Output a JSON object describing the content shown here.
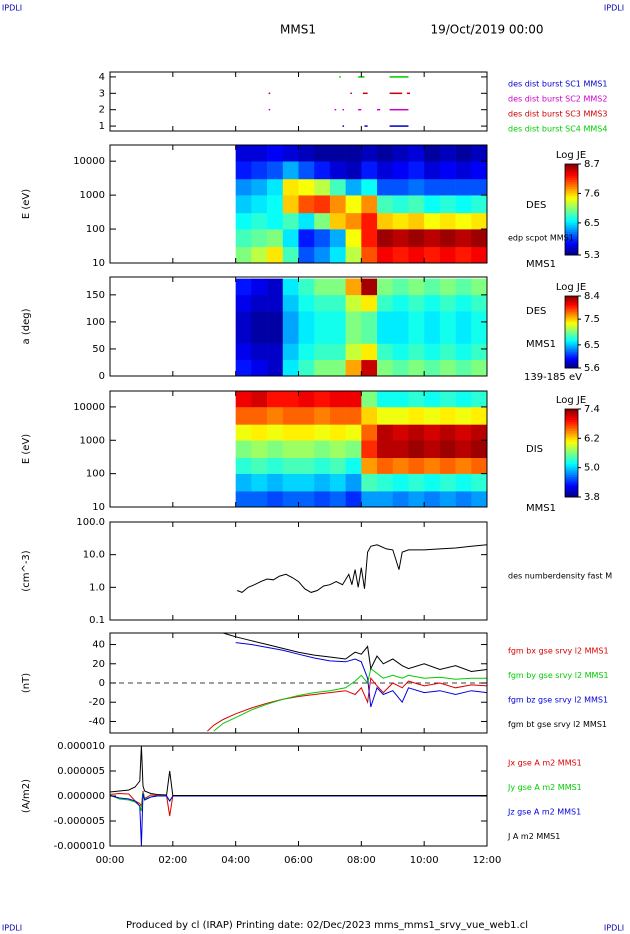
{
  "page": {
    "corner_marks": [
      "IPDLI",
      "IPDLI",
      "IPDLI",
      "IPDLI"
    ],
    "title": "MMS1",
    "date": "19/Oct/2019 00:00",
    "footer": "Produced by cl (IRAP)   Printing date: 02/Dec/2023   mms_mms1_srvy_vue_web1.cl"
  },
  "chart_data": [
    {
      "type": "timeline",
      "xlim": [
        0,
        12
      ],
      "ylim": [
        0.7,
        4.3
      ],
      "yticks": [
        1,
        2,
        3,
        4
      ],
      "series": [
        {
          "name": "des dist burst SC1 MMS1",
          "color": "#0000cc",
          "y": 1,
          "intervals": [
            [
              7.4,
              7.45
            ],
            [
              8.1,
              8.2
            ],
            [
              8.9,
              9.5
            ]
          ]
        },
        {
          "name": "des dist burst SC2 MMS2",
          "color": "#cc00cc",
          "y": 2,
          "intervals": [
            [
              5.05,
              5.1
            ],
            [
              7.15,
              7.2
            ],
            [
              7.4,
              7.45
            ],
            [
              7.9,
              8.0
            ],
            [
              8.5,
              8.6
            ],
            [
              8.9,
              9.5
            ]
          ]
        },
        {
          "name": "des dist burst SC3 MMS3",
          "color": "#cc0000",
          "y": 3,
          "intervals": [
            [
              5.05,
              5.1
            ],
            [
              7.65,
              7.7
            ],
            [
              8.05,
              8.2
            ],
            [
              8.9,
              9.3
            ],
            [
              9.45,
              9.55
            ]
          ]
        },
        {
          "name": "des dist burst SC4 MMS4",
          "color": "#00cc00",
          "y": 4,
          "intervals": [
            [
              7.3,
              7.35
            ],
            [
              7.9,
              8.1
            ],
            [
              8.9,
              9.5
            ]
          ]
        }
      ]
    },
    {
      "type": "heatmap",
      "ylabel": "E (eV)",
      "xlim": [
        0,
        12
      ],
      "ylim": [
        10,
        30000
      ],
      "log": true,
      "yticks": [
        10,
        100,
        1000,
        10000
      ],
      "xbins": [
        4,
        4.5,
        5,
        5.5,
        6,
        6.5,
        7,
        7.5,
        8,
        8.5,
        9,
        9.5,
        10,
        10.5,
        11,
        11.5,
        12
      ],
      "ybins": [
        10,
        30,
        100,
        300,
        1000,
        3000,
        10000,
        30000
      ],
      "z": [
        [
          7.0,
          7.2,
          7.5,
          6.8,
          6.0,
          6.2,
          6.5,
          7.2,
          8.0,
          8.3,
          8.2,
          8.3,
          8.2,
          8.3,
          8.2,
          8.3
        ],
        [
          6.8,
          6.9,
          7.0,
          6.5,
          5.8,
          6.0,
          6.3,
          7.4,
          8.2,
          8.6,
          8.5,
          8.6,
          8.5,
          8.6,
          8.5,
          8.6
        ],
        [
          6.6,
          6.7,
          6.6,
          6.8,
          6.5,
          7.0,
          7.6,
          7.8,
          8.2,
          7.6,
          7.5,
          7.6,
          7.4,
          7.5,
          7.4,
          7.5
        ],
        [
          6.4,
          6.5,
          6.6,
          7.6,
          8.0,
          8.1,
          7.8,
          7.4,
          7.8,
          6.8,
          6.7,
          6.8,
          6.6,
          6.7,
          6.6,
          6.7
        ],
        [
          6.2,
          6.3,
          6.5,
          7.5,
          7.4,
          7.2,
          6.8,
          6.3,
          6.6,
          6.0,
          6.0,
          6.1,
          6.0,
          6.0,
          6.0,
          6.0
        ],
        [
          5.8,
          5.9,
          6.0,
          6.3,
          6.0,
          5.8,
          5.6,
          5.5,
          5.8,
          5.6,
          5.7,
          5.8,
          5.6,
          5.7,
          5.6,
          5.7
        ],
        [
          5.6,
          5.6,
          5.7,
          5.6,
          5.5,
          5.4,
          5.4,
          5.4,
          5.5,
          5.4,
          5.5,
          5.6,
          5.4,
          5.5,
          5.4,
          5.5
        ]
      ],
      "zlabel": "Log JE",
      "zlim": [
        5.3,
        8.7
      ],
      "zticks": [
        5.3,
        6.5,
        7.6,
        8.7
      ],
      "labels": [
        "DES",
        "edp scpot MMS1",
        "MMS1"
      ]
    },
    {
      "type": "heatmap",
      "ylabel": "a (deg)",
      "xlim": [
        0,
        12
      ],
      "ylim": [
        0,
        183
      ],
      "log": false,
      "yticks": [
        0,
        50,
        100,
        150
      ],
      "xbins": [
        4,
        4.5,
        5,
        5.5,
        6,
        6.5,
        7,
        7.5,
        8,
        8.5,
        9,
        9.5,
        10,
        10.5,
        11,
        11.5,
        12
      ],
      "ybins": [
        0,
        30,
        60,
        90,
        120,
        150,
        180
      ],
      "z": [
        [
          6.0,
          5.9,
          5.8,
          6.6,
          6.8,
          7.0,
          7.0,
          7.6,
          8.2,
          7.0,
          6.9,
          7.0,
          6.9,
          7.0,
          6.9,
          7.0
        ],
        [
          5.9,
          5.8,
          5.8,
          6.5,
          6.7,
          6.8,
          6.8,
          7.2,
          7.4,
          6.8,
          6.7,
          6.8,
          6.7,
          6.8,
          6.7,
          6.8
        ],
        [
          5.8,
          5.7,
          5.7,
          6.4,
          6.6,
          6.7,
          6.7,
          7.0,
          6.9,
          6.6,
          6.6,
          6.7,
          6.6,
          6.7,
          6.6,
          6.7
        ],
        [
          5.8,
          5.7,
          5.7,
          6.4,
          6.6,
          6.7,
          6.7,
          7.0,
          6.9,
          6.6,
          6.6,
          6.7,
          6.6,
          6.7,
          6.6,
          6.7
        ],
        [
          5.9,
          5.8,
          5.8,
          6.5,
          6.7,
          6.8,
          6.8,
          7.2,
          7.4,
          6.8,
          6.7,
          6.8,
          6.7,
          6.8,
          6.7,
          6.8
        ],
        [
          6.0,
          5.9,
          5.8,
          6.6,
          6.8,
          7.0,
          7.0,
          7.6,
          8.3,
          7.0,
          6.9,
          7.0,
          6.9,
          7.0,
          6.9,
          7.0
        ]
      ],
      "zlabel": "Log JE",
      "zlim": [
        5.6,
        8.4
      ],
      "zticks": [
        5.6,
        6.5,
        7.5,
        8.4
      ],
      "labels": [
        "DES",
        "MMS1",
        "139-185 eV"
      ]
    },
    {
      "type": "heatmap",
      "ylabel": "E (eV)",
      "xlim": [
        0,
        12
      ],
      "ylim": [
        10,
        30000
      ],
      "log": true,
      "yticks": [
        10,
        100,
        1000,
        10000
      ],
      "xbins": [
        4,
        4.5,
        5,
        5.5,
        6,
        6.5,
        7,
        7.5,
        8,
        8.5,
        9,
        9.5,
        10,
        10.5,
        11,
        11.5,
        12
      ],
      "ybins": [
        10,
        30,
        100,
        300,
        1000,
        3000,
        10000,
        30000
      ],
      "z": [
        [
          4.6,
          4.6,
          4.5,
          4.6,
          4.6,
          4.5,
          4.6,
          4.4,
          4.8,
          4.8,
          4.7,
          4.8,
          4.7,
          4.8,
          4.7,
          4.8
        ],
        [
          4.9,
          5.0,
          4.9,
          5.0,
          5.0,
          4.9,
          5.0,
          4.8,
          5.4,
          5.3,
          5.2,
          5.3,
          5.2,
          5.3,
          5.2,
          5.3
        ],
        [
          5.3,
          5.4,
          5.3,
          5.4,
          5.4,
          5.3,
          5.4,
          5.2,
          6.4,
          6.6,
          6.5,
          6.6,
          6.5,
          6.6,
          6.5,
          6.6
        ],
        [
          5.6,
          5.7,
          5.6,
          5.7,
          5.7,
          5.6,
          5.7,
          5.6,
          6.8,
          7.2,
          7.2,
          7.3,
          7.2,
          7.3,
          7.2,
          7.3
        ],
        [
          6.0,
          6.1,
          6.0,
          6.1,
          6.1,
          6.0,
          6.1,
          6.0,
          6.6,
          7.2,
          7.1,
          7.2,
          7.1,
          7.2,
          7.1,
          7.2
        ],
        [
          6.6,
          6.6,
          6.5,
          6.6,
          6.6,
          6.5,
          6.6,
          6.6,
          6.2,
          6.0,
          6.0,
          6.1,
          6.0,
          6.1,
          6.0,
          6.1
        ],
        [
          7.0,
          7.1,
          6.9,
          6.9,
          7.0,
          6.9,
          7.0,
          7.0,
          5.6,
          5.2,
          5.2,
          5.3,
          5.2,
          5.3,
          5.2,
          5.3
        ]
      ],
      "zlabel": "Log JE",
      "zlim": [
        3.8,
        7.4
      ],
      "zticks": [
        3.8,
        {
          "value": 5,
          "label": "5.0"
        },
        6.2,
        7.4
      ],
      "labels": [
        "DIS",
        "MMS1"
      ]
    },
    {
      "type": "line",
      "ylabel": "(cm^-3)",
      "xlim": [
        0,
        12
      ],
      "ylim": [
        0.1,
        100
      ],
      "log": true,
      "yticks": [
        0.1,
        {
          "value": 1,
          "label": "1.0"
        },
        {
          "value": 10,
          "label": "10.0"
        },
        {
          "value": 100,
          "label": "100.0"
        }
      ],
      "x": [
        4.05,
        4.2,
        4.4,
        4.6,
        4.8,
        5.0,
        5.2,
        5.4,
        5.6,
        5.8,
        6.0,
        6.2,
        6.4,
        6.6,
        6.8,
        7.0,
        7.2,
        7.4,
        7.6,
        7.7,
        7.8,
        7.9,
        8.0,
        8.1,
        8.2,
        8.3,
        8.5,
        8.8,
        9.0,
        9.2,
        9.3,
        9.5,
        10.0,
        10.5,
        11.0,
        11.5,
        12.0
      ],
      "series": [
        {
          "name": "des numberdensity fast M",
          "color": "#000000",
          "values": [
            0.8,
            0.7,
            1.0,
            1.2,
            1.5,
            1.8,
            1.7,
            2.2,
            2.5,
            2.0,
            1.5,
            0.9,
            0.7,
            0.8,
            1.1,
            1.2,
            1.5,
            1.2,
            2.5,
            1.2,
            3.5,
            1.0,
            4.0,
            0.9,
            12,
            18,
            20,
            15,
            14,
            3.5,
            12,
            14,
            14,
            15,
            16,
            18,
            20
          ]
        }
      ]
    },
    {
      "type": "line",
      "ylabel": "(nT)",
      "xlim": [
        0,
        12
      ],
      "ylim": [
        -52,
        52
      ],
      "log": false,
      "zero_line": true,
      "yticks": [
        -40,
        -20,
        0,
        20,
        40
      ],
      "x": [
        3.1,
        3.3,
        3.6,
        4,
        4.5,
        5,
        5.5,
        6,
        6.5,
        7,
        7.5,
        7.8,
        8,
        8.2,
        8.3,
        8.5,
        8.7,
        9,
        9.3,
        9.5,
        10,
        10.5,
        11,
        11.5,
        12
      ],
      "series": [
        {
          "name": "fgm bx gse srvy l2 MMS1",
          "color": "#dd0000",
          "values": [
            -50,
            -44,
            -38,
            -32,
            -26,
            -21,
            -17,
            -14,
            -12,
            -10,
            -8,
            -12,
            -5,
            -20,
            5,
            -3,
            -10,
            0,
            -5,
            2,
            -3,
            0,
            -5,
            -2,
            -3
          ]
        },
        {
          "name": "fgm by gse srvy l2 MMS1",
          "color": "#00cc00",
          "values": [
            null,
            -50,
            -42,
            -36,
            -28,
            -22,
            -17,
            -13,
            -10,
            -8,
            -5,
            2,
            8,
            0,
            15,
            10,
            5,
            8,
            5,
            8,
            5,
            6,
            4,
            5,
            5
          ]
        },
        {
          "name": "fgm bz gse srvy l2 MMS1",
          "color": "#0000dd",
          "values": [
            null,
            null,
            null,
            42,
            40,
            37,
            34,
            30,
            26,
            23,
            22,
            25,
            22,
            5,
            -25,
            -5,
            -12,
            -8,
            -20,
            -5,
            -10,
            -8,
            -12,
            -8,
            -10
          ]
        },
        {
          "name": "fgm bt gse srvy l2 MMS1",
          "color": "#000000",
          "values": [
            null,
            null,
            52,
            48,
            44,
            40,
            36,
            32,
            29,
            27,
            25,
            32,
            30,
            38,
            15,
            28,
            20,
            25,
            18,
            15,
            20,
            14,
            18,
            12,
            14
          ]
        }
      ]
    },
    {
      "type": "line",
      "ylabel": "(A/m2)",
      "xlim": [
        0,
        12
      ],
      "ylim": [
        -1e-05,
        1e-05
      ],
      "log": false,
      "yticks": [
        {
          "value": -1e-05,
          "label": "-0.000010"
        },
        {
          "value": -5e-06,
          "label": "-0.000005"
        },
        {
          "value": 0,
          "label": "0.000000"
        },
        {
          "value": 5e-06,
          "label": "0.000005"
        },
        {
          "value": 1e-05,
          "label": "0.000010"
        }
      ],
      "xticks": [
        {
          "value": 0,
          "label": "00:00"
        },
        {
          "value": 2,
          "label": "02:00"
        },
        {
          "value": 4,
          "label": "04:00"
        },
        {
          "value": 6,
          "label": "06:00"
        },
        {
          "value": 8,
          "label": "08:00"
        },
        {
          "value": 10,
          "label": "10:00"
        },
        {
          "value": 12,
          "label": "12:00"
        }
      ],
      "x": [
        0,
        0.3,
        0.6,
        0.8,
        0.95,
        1.0,
        1.05,
        1.1,
        1.3,
        1.5,
        1.8,
        1.9,
        2.0,
        2.2,
        3,
        4,
        6,
        8,
        10,
        12
      ],
      "series": [
        {
          "name": "Jx gse A m2 MMS1",
          "color": "#dd0000",
          "values": [
            3e-07,
            5e-07,
            4e-07,
            -1e-06,
            -1.5e-06,
            -2e-06,
            1e-06,
            -5e-07,
            2e-07,
            1e-07,
            0,
            -4e-06,
            0,
            0,
            0,
            0,
            0,
            0,
            0,
            0
          ]
        },
        {
          "name": "Jy gse A m2 MMS1",
          "color": "#00cc00",
          "values": [
            2e-07,
            -6e-07,
            -8e-07,
            -1.2e-06,
            -2e-06,
            -3e-06,
            8e-07,
            -6e-07,
            -2e-07,
            0,
            0,
            -1e-06,
            0,
            0,
            0,
            0,
            0,
            0,
            0,
            0
          ]
        },
        {
          "name": "Jz gse A m2 MMS1",
          "color": "#0000dd",
          "values": [
            1e-07,
            -4e-07,
            -6e-07,
            -1e-06,
            -2e-06,
            -1e-05,
            5e-07,
            -8e-07,
            -2e-07,
            0,
            0,
            -1e-06,
            0,
            0,
            0,
            0,
            0,
            0,
            0,
            0
          ]
        },
        {
          "name": "J A m2 MMS1",
          "color": "#000000",
          "values": [
            8e-07,
            1e-06,
            1.2e-06,
            1.8e-06,
            3e-06,
            1e-05,
            2e-06,
            1e-06,
            5e-07,
            3e-07,
            2e-07,
            5e-06,
            1e-07,
            1e-07,
            1e-07,
            1e-07,
            1e-07,
            1e-07,
            1e-07,
            1e-07
          ]
        }
      ]
    }
  ]
}
